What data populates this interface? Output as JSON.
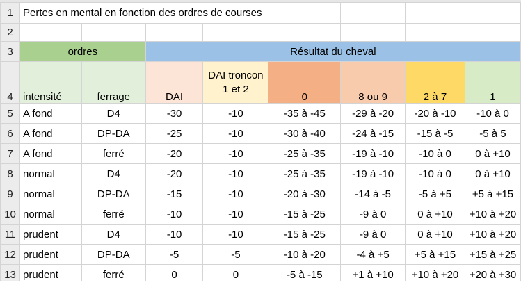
{
  "row_numbers": [
    "1",
    "2",
    "3",
    "4",
    "5",
    "6",
    "7",
    "8",
    "9",
    "10",
    "11",
    "12",
    "13"
  ],
  "title": "Pertes en mental en fonction des ordres de courses",
  "group_headers": {
    "ordres": "ordres",
    "resultat": "Résultat du cheval"
  },
  "column_headers": {
    "intensite": "intensité",
    "ferrage": "ferrage",
    "dai": "DAI",
    "dai_troncon_line1": "DAI troncon",
    "dai_troncon_line2": "1 et 2",
    "place_0": "0",
    "place_8_9": "8 ou 9",
    "place_2_7": "2 à 7",
    "place_1": "1"
  },
  "colors": {
    "ordres_header": "#a9d08e",
    "resultat_header": "#9bc2e6",
    "intensite_ferrage_header": "#e2efda",
    "dai_header": "#fce4d6",
    "dai_troncon_header": "#fff2cc",
    "place_0_header": "#f4b084",
    "place_8_9_header": "#f8cbad",
    "place_2_7_header": "#ffd966",
    "place_1_header": "#d7ecc6"
  },
  "rows": [
    {
      "intensite": "A fond",
      "ferrage": "D4",
      "dai": "-30",
      "dai_troncon": "-10",
      "place_0": "-35 à -45",
      "place_8_9": "-29 à -20",
      "place_2_7": "-20 à -10",
      "place_1": "-10 à 0"
    },
    {
      "intensite": "A fond",
      "ferrage": "DP-DA",
      "dai": "-25",
      "dai_troncon": "-10",
      "place_0": "-30 à -40",
      "place_8_9": "-24 à -15",
      "place_2_7": "-15 à -5",
      "place_1": "-5 à 5"
    },
    {
      "intensite": "A fond",
      "ferrage": "ferré",
      "dai": "-20",
      "dai_troncon": "-10",
      "place_0": "-25 à -35",
      "place_8_9": "-19 à -10",
      "place_2_7": "-10 à 0",
      "place_1": "0 à +10"
    },
    {
      "intensite": "normal",
      "ferrage": "D4",
      "dai": "-20",
      "dai_troncon": "-10",
      "place_0": "-25 à -35",
      "place_8_9": "-19 à -10",
      "place_2_7": "-10 à 0",
      "place_1": "0 à +10"
    },
    {
      "intensite": "normal",
      "ferrage": "DP-DA",
      "dai": "-15",
      "dai_troncon": "-10",
      "place_0": "-20 à -30",
      "place_8_9": "-14 à -5",
      "place_2_7": "-5 à +5",
      "place_1": "+5 à +15"
    },
    {
      "intensite": "normal",
      "ferrage": "ferré",
      "dai": "-10",
      "dai_troncon": "-10",
      "place_0": "-15 à -25",
      "place_8_9": "-9 à 0",
      "place_2_7": "0 à +10",
      "place_1": "+10 à +20"
    },
    {
      "intensite": "prudent",
      "ferrage": "D4",
      "dai": "-10",
      "dai_troncon": "-10",
      "place_0": "-15 à -25",
      "place_8_9": "-9 à 0",
      "place_2_7": "0 à +10",
      "place_1": "+10 à +20"
    },
    {
      "intensite": "prudent",
      "ferrage": "DP-DA",
      "dai": "-5",
      "dai_troncon": "-5",
      "place_0": "-10 à -20",
      "place_8_9": "-4 à +5",
      "place_2_7": "+5 à +15",
      "place_1": "+15 à +25"
    },
    {
      "intensite": "prudent",
      "ferrage": "ferré",
      "dai": "0",
      "dai_troncon": "0",
      "place_0": "-5 à -15",
      "place_8_9": "+1 à +10",
      "place_2_7": "+10 à +20",
      "place_1": "+20 à +30"
    }
  ]
}
